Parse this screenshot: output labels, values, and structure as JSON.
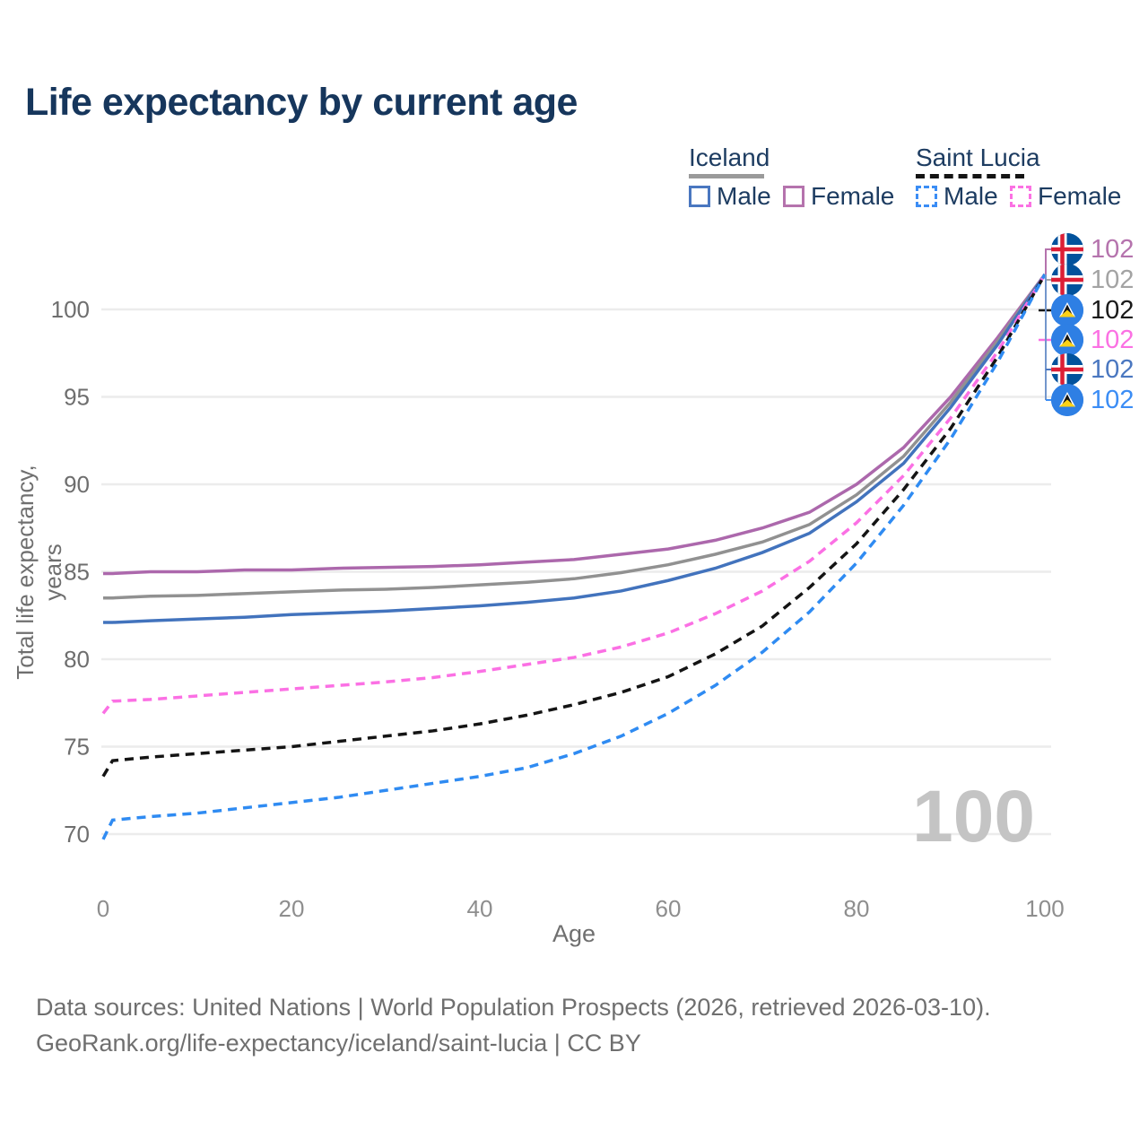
{
  "title": "Life expectancy by current age",
  "legend": {
    "groups": [
      {
        "country": "Iceland",
        "line_style": "solid",
        "line_color": "#9a9a9a",
        "items": [
          {
            "label": "Male",
            "color": "#4a77c0",
            "style": "solid"
          },
          {
            "label": "Female",
            "color": "#b573ad",
            "style": "solid"
          }
        ]
      },
      {
        "country": "Saint Lucia",
        "line_style": "dashed",
        "line_color": "#141414",
        "items": [
          {
            "label": "Male",
            "color": "#3b8df5",
            "style": "dashed"
          },
          {
            "label": "Female",
            "color": "#fb71e3",
            "style": "dashed"
          }
        ]
      }
    ]
  },
  "watermark": "100",
  "end_labels": [
    {
      "series": "Iceland Female",
      "flag": "iceland",
      "value": "102",
      "color": "#b573ad"
    },
    {
      "series": "Iceland All",
      "flag": "iceland",
      "value": "102",
      "color": "#a3a3a3"
    },
    {
      "series": "Saint Lucia All",
      "flag": "saint-lucia",
      "value": "102",
      "color": "#1a1a1a"
    },
    {
      "series": "Saint Lucia Female",
      "flag": "saint-lucia",
      "value": "102",
      "color": "#fb71e3"
    },
    {
      "series": "Iceland Male",
      "flag": "iceland",
      "value": "102",
      "color": "#4a77c0"
    },
    {
      "series": "Saint Lucia Male",
      "flag": "saint-lucia",
      "value": "102",
      "color": "#3b8df5"
    }
  ],
  "footer": {
    "line1": "Data sources: United Nations | World Population Prospects (2026, retrieved 2026-03-10).",
    "line2": "GeoRank.org/life-expectancy/iceland/saint-lucia | CC BY"
  },
  "chart_data": {
    "type": "line",
    "title": "Life expectancy by current age",
    "xlabel": "Age",
    "ylabel": "Total life expectancy, years",
    "xlim": [
      0,
      100
    ],
    "ylim": [
      68,
      103
    ],
    "xticks": [
      0,
      20,
      40,
      60,
      80,
      100
    ],
    "yticks": [
      70,
      75,
      80,
      85,
      90,
      95,
      100
    ],
    "grid": "horizontal",
    "legend_position": "top-right",
    "x": [
      0,
      1,
      5,
      10,
      15,
      20,
      25,
      30,
      35,
      40,
      45,
      50,
      55,
      60,
      65,
      70,
      75,
      80,
      85,
      90,
      95,
      100
    ],
    "series": [
      {
        "name": "Iceland Female",
        "color": "#ac68ac",
        "dash": "solid",
        "values": [
          84.9,
          84.9,
          85.0,
          85.0,
          85.1,
          85.1,
          85.2,
          85.25,
          85.3,
          85.4,
          85.55,
          85.7,
          86.0,
          86.3,
          86.8,
          87.5,
          88.4,
          90.0,
          92.1,
          95.0,
          98.4,
          102
        ]
      },
      {
        "name": "Iceland All",
        "color": "#919191",
        "dash": "solid",
        "values": [
          83.5,
          83.5,
          83.6,
          83.65,
          83.75,
          83.85,
          83.95,
          84.0,
          84.1,
          84.25,
          84.4,
          84.6,
          84.95,
          85.4,
          86.0,
          86.7,
          87.7,
          89.4,
          91.6,
          94.7,
          98.2,
          102
        ]
      },
      {
        "name": "Iceland Male",
        "color": "#4273bd",
        "dash": "solid",
        "values": [
          82.1,
          82.1,
          82.2,
          82.3,
          82.4,
          82.55,
          82.65,
          82.75,
          82.9,
          83.05,
          83.25,
          83.5,
          83.9,
          84.5,
          85.2,
          86.1,
          87.2,
          89.0,
          91.2,
          94.4,
          98.0,
          102
        ]
      },
      {
        "name": "Saint Lucia Female",
        "color": "#fb70e4",
        "dash": "dashed",
        "values": [
          76.9,
          77.6,
          77.7,
          77.9,
          78.1,
          78.3,
          78.5,
          78.7,
          78.95,
          79.3,
          79.7,
          80.1,
          80.7,
          81.5,
          82.6,
          83.9,
          85.6,
          87.8,
          90.5,
          93.8,
          97.6,
          102
        ]
      },
      {
        "name": "Saint Lucia All",
        "color": "#141414",
        "dash": "dashed",
        "values": [
          73.3,
          74.2,
          74.4,
          74.6,
          74.8,
          75.0,
          75.3,
          75.6,
          75.9,
          76.3,
          76.8,
          77.4,
          78.1,
          79.0,
          80.3,
          81.9,
          84.1,
          86.6,
          89.7,
          93.2,
          97.3,
          102
        ]
      },
      {
        "name": "Saint Lucia Male",
        "color": "#2f8bf2",
        "dash": "dashed",
        "values": [
          69.7,
          70.8,
          71.0,
          71.2,
          71.5,
          71.8,
          72.1,
          72.5,
          72.9,
          73.3,
          73.8,
          74.6,
          75.6,
          76.9,
          78.5,
          80.4,
          82.7,
          85.5,
          88.8,
          92.6,
          97.0,
          102
        ]
      }
    ]
  }
}
